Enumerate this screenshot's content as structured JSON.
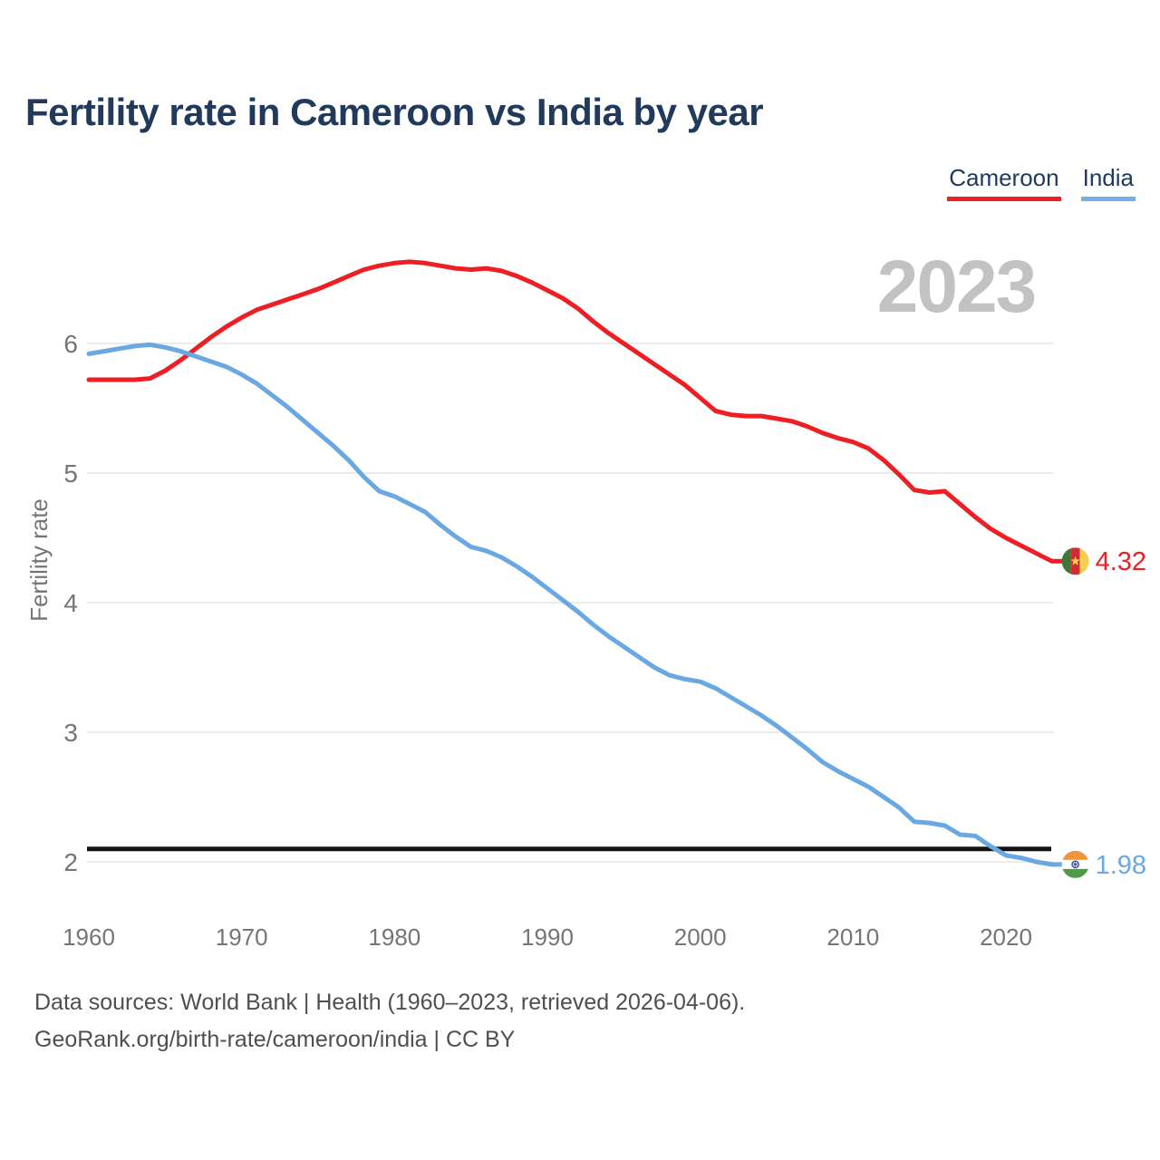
{
  "title": "Fertility rate in Cameroon vs India by year",
  "watermark": "2023",
  "legend": [
    {
      "label": "Cameroon",
      "color": "#ed1f24"
    },
    {
      "label": "India",
      "color": "#74b0e4"
    }
  ],
  "y_axis": {
    "label": "Fertility rate"
  },
  "end_labels": [
    {
      "series": "Cameroon",
      "value": "4.32"
    },
    {
      "series": "India",
      "value": "1.98"
    }
  ],
  "reference_line": {
    "value": 2.1,
    "color": "#141414"
  },
  "footer": {
    "line1": "Data sources: World Bank | Health (1960–2023, retrieved 2026-04-06).",
    "line2": "GeoRank.org/birth-rate/cameroon/india | CC BY"
  },
  "chart_data": {
    "type": "line",
    "title": "Fertility rate in Cameroon vs India by year",
    "xlabel": "",
    "ylabel": "Fertility rate",
    "x_ticks": [
      1960,
      1970,
      1980,
      1990,
      2000,
      2010,
      2020
    ],
    "y_ticks": [
      2,
      3,
      4,
      5,
      6
    ],
    "x_range": [
      1960,
      2023
    ],
    "grid": "horizontal",
    "legend_position": "top-right",
    "reference_line_value": 2.1,
    "x": [
      1960,
      1961,
      1962,
      1963,
      1964,
      1965,
      1966,
      1967,
      1968,
      1969,
      1970,
      1971,
      1972,
      1973,
      1974,
      1975,
      1976,
      1977,
      1978,
      1979,
      1980,
      1981,
      1982,
      1983,
      1984,
      1985,
      1986,
      1987,
      1988,
      1989,
      1990,
      1991,
      1992,
      1993,
      1994,
      1995,
      1996,
      1997,
      1998,
      1999,
      2000,
      2001,
      2002,
      2003,
      2004,
      2005,
      2006,
      2007,
      2008,
      2009,
      2010,
      2011,
      2012,
      2013,
      2014,
      2015,
      2016,
      2017,
      2018,
      2019,
      2020,
      2021,
      2022,
      2023
    ],
    "series": [
      {
        "name": "Cameroon",
        "color": "#ed1f24",
        "values": [
          5.72,
          5.72,
          5.72,
          5.72,
          5.73,
          5.79,
          5.87,
          5.96,
          6.05,
          6.13,
          6.2,
          6.26,
          6.3,
          6.34,
          6.38,
          6.42,
          6.47,
          6.52,
          6.57,
          6.6,
          6.62,
          6.63,
          6.62,
          6.6,
          6.58,
          6.57,
          6.58,
          6.56,
          6.52,
          6.47,
          6.41,
          6.35,
          6.27,
          6.17,
          6.08,
          6.0,
          5.92,
          5.84,
          5.76,
          5.68,
          5.58,
          5.48,
          5.45,
          5.44,
          5.44,
          5.42,
          5.4,
          5.36,
          5.31,
          5.27,
          5.24,
          5.19,
          5.1,
          4.99,
          4.87,
          4.85,
          4.86,
          4.76,
          4.66,
          4.57,
          4.5,
          4.44,
          4.38,
          4.32
        ]
      },
      {
        "name": "India",
        "color": "#69a8e3",
        "values": [
          5.92,
          5.94,
          5.96,
          5.98,
          5.99,
          5.97,
          5.94,
          5.9,
          5.86,
          5.82,
          5.76,
          5.69,
          5.6,
          5.51,
          5.41,
          5.31,
          5.21,
          5.1,
          4.97,
          4.86,
          4.82,
          4.76,
          4.7,
          4.6,
          4.51,
          4.43,
          4.4,
          4.35,
          4.28,
          4.2,
          4.11,
          4.02,
          3.93,
          3.83,
          3.74,
          3.66,
          3.58,
          3.5,
          3.44,
          3.41,
          3.39,
          3.34,
          3.27,
          3.2,
          3.13,
          3.05,
          2.96,
          2.87,
          2.77,
          2.7,
          2.64,
          2.58,
          2.5,
          2.42,
          2.31,
          2.3,
          2.28,
          2.21,
          2.2,
          2.12,
          2.05,
          2.03,
          2.0,
          1.98
        ]
      }
    ]
  }
}
